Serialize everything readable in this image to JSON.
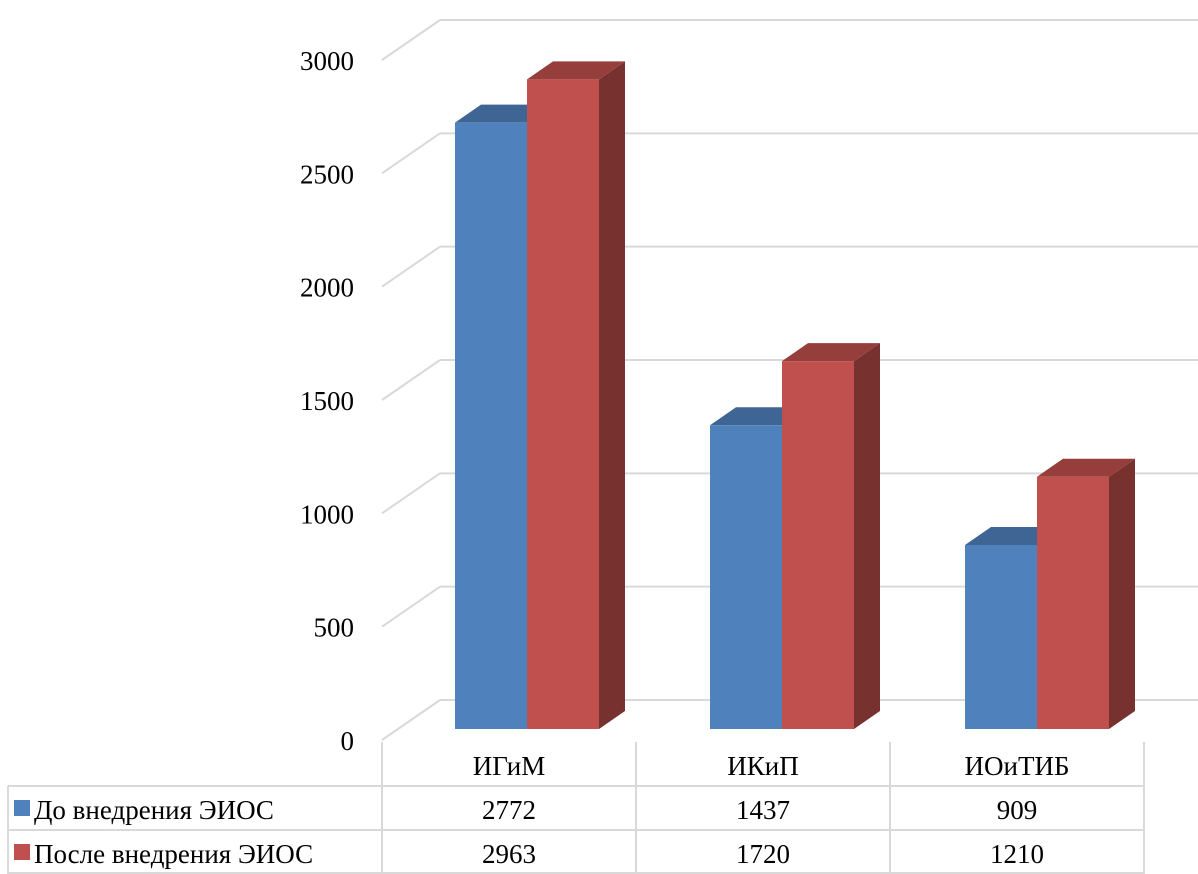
{
  "chart_data": {
    "type": "bar",
    "style": "3d-clustered-column",
    "title": "",
    "xlabel": "",
    "ylabel": "",
    "categories": [
      "ИГиМ",
      "ИКиП",
      "ИОиТИБ"
    ],
    "series": [
      {
        "name": "До внедрения ЭИОС",
        "values": [
          2772,
          1437,
          909
        ],
        "color": "#4F81BD"
      },
      {
        "name": "После внедрения ЭИОС",
        "values": [
          2963,
          1720,
          1210
        ],
        "color": "#C0504D"
      }
    ],
    "ylim": [
      0,
      3000
    ],
    "yticks": [
      0,
      500,
      1000,
      1500,
      2000,
      2500,
      3000
    ],
    "grid": true,
    "legend": "data-table-below"
  }
}
